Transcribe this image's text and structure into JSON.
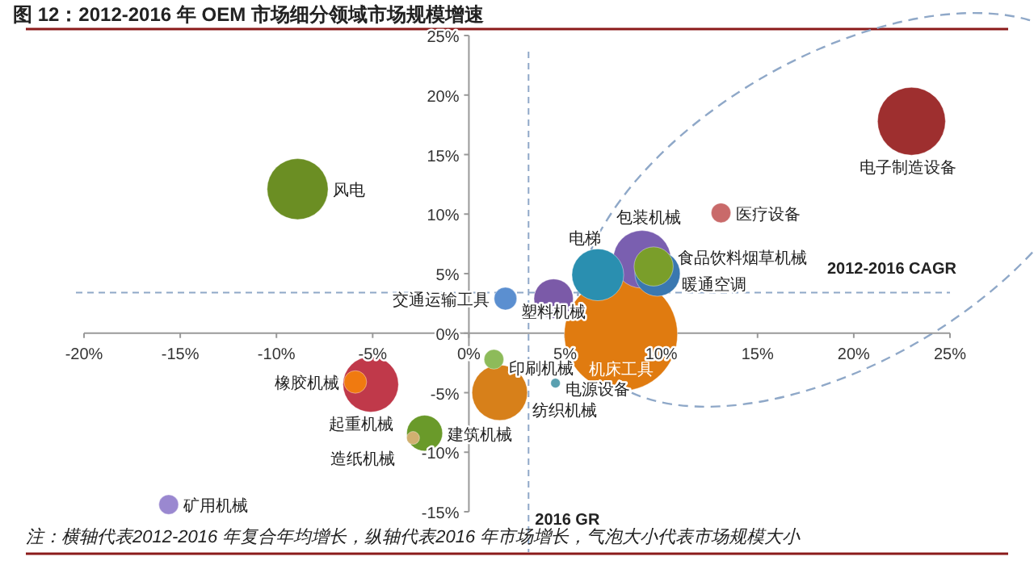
{
  "chart_data": {
    "type": "bubble",
    "title": "图 12：2012-2016 年 OEM 市场细分领域市场规模增速",
    "annotations": [
      "注：横轴代表2012-2016 年复合年均增长，纵轴代表2016 年市场增长，气泡大小代表市场规模大小"
    ],
    "xlim": [
      -20,
      25
    ],
    "ylim": [
      -15,
      25
    ],
    "xticks": [
      {
        "value": -20,
        "label": "-20%"
      },
      {
        "value": -15,
        "label": "-15%"
      },
      {
        "value": -10,
        "label": "-10%"
      },
      {
        "value": -5,
        "label": "-5%"
      },
      {
        "value": 0,
        "label": "0%"
      },
      {
        "value": 5,
        "label": "5%"
      },
      {
        "value": 10,
        "label": "10%"
      },
      {
        "value": 15,
        "label": "15%"
      },
      {
        "value": 20,
        "label": "20%"
      },
      {
        "value": 25,
        "label": "25%"
      }
    ],
    "yticks": [
      {
        "value": -15,
        "label": "-15%"
      },
      {
        "value": -10,
        "label": "-10%"
      },
      {
        "value": -5,
        "label": "-5%"
      },
      {
        "value": 0,
        "label": "0%"
      },
      {
        "value": 5,
        "label": "5%"
      },
      {
        "value": 10,
        "label": "10%"
      },
      {
        "value": 15,
        "label": "15%"
      },
      {
        "value": 20,
        "label": "20%"
      },
      {
        "value": 25,
        "label": "25%"
      }
    ],
    "ref_lines": [
      {
        "axis": "y",
        "value": 3.4,
        "label": "2012-2016 CAGR",
        "color": "#8fa8c8",
        "line_style": "dashed"
      },
      {
        "axis": "x",
        "value": 3.1,
        "label": "2016 GR",
        "color": "#8fa8c8",
        "line_style": "dashed"
      }
    ],
    "series": [
      {
        "name": "机床工具",
        "color": "#e07b10",
        "x": [
          7.9
        ],
        "values": [
          -0.1
        ],
        "sizes": [
          1
        ]
      },
      {
        "name": "电子制造设备",
        "color": "#9e2f2f",
        "x": [
          23.0
        ],
        "values": [
          17.8
        ],
        "sizes": [
          0.36
        ]
      },
      {
        "name": "风电",
        "color": "#6b8e23",
        "x": [
          -8.9
        ],
        "values": [
          12.1
        ],
        "sizes": [
          0.29
        ]
      },
      {
        "name": "包装机械",
        "color": "#7a5fb0",
        "x": [
          9.0
        ],
        "values": [
          6.2
        ],
        "sizes": [
          0.26
        ]
      },
      {
        "name": "纺织机械",
        "color": "#d7801a",
        "x": [
          1.6
        ],
        "values": [
          -5.0
        ],
        "sizes": [
          0.24
        ]
      },
      {
        "name": "起重机械",
        "color": "#c0394a",
        "x": [
          -5.1
        ],
        "values": [
          -4.3
        ],
        "sizes": [
          0.24
        ]
      },
      {
        "name": "电梯",
        "color": "#2a8fb0",
        "x": [
          6.7
        ],
        "values": [
          4.9
        ],
        "sizes": [
          0.21
        ]
      },
      {
        "name": "暖通空调",
        "color": "#3a78b0",
        "x": [
          9.8
        ],
        "values": [
          5.0
        ],
        "sizes": [
          0.16
        ]
      },
      {
        "name": "食品饮料烟草机械",
        "color": "#7a9e2a",
        "x": [
          9.6
        ],
        "values": [
          5.6
        ],
        "sizes": [
          0.12
        ]
      },
      {
        "name": "塑料机械",
        "color": "#7b5aa8",
        "x": [
          4.4
        ],
        "values": [
          2.9
        ],
        "sizes": [
          0.12
        ]
      },
      {
        "name": "建筑机械",
        "color": "#6a9a2a",
        "x": [
          -2.3
        ],
        "values": [
          -8.4
        ],
        "sizes": [
          0.1
        ]
      },
      {
        "name": "交通运输工具",
        "color": "#5b8fd0",
        "x": [
          1.9
        ],
        "values": [
          2.9
        ],
        "sizes": [
          0.04
        ]
      },
      {
        "name": "橡胶机械",
        "color": "#f07a10",
        "x": [
          -5.9
        ],
        "values": [
          -4.1
        ],
        "sizes": [
          0.04
        ]
      },
      {
        "name": "医疗设备",
        "color": "#c96a6a",
        "x": [
          13.1
        ],
        "values": [
          10.1
        ],
        "sizes": [
          0.03
        ]
      },
      {
        "name": "印刷机械",
        "color": "#8dbb5a",
        "x": [
          1.3
        ],
        "values": [
          -2.2
        ],
        "sizes": [
          0.03
        ]
      },
      {
        "name": "矿用机械",
        "color": "#9a88d0",
        "x": [
          -15.6
        ],
        "values": [
          -14.4
        ],
        "sizes": [
          0.03
        ]
      },
      {
        "name": "造纸机械",
        "color": "#d0b070",
        "x": [
          -2.9
        ],
        "values": [
          -8.8
        ],
        "sizes": [
          0.013
        ]
      },
      {
        "name": "电源设备",
        "color": "#5aa0b0",
        "x": [
          4.5
        ],
        "values": [
          -4.2
        ],
        "sizes": [
          0.007
        ]
      }
    ]
  }
}
